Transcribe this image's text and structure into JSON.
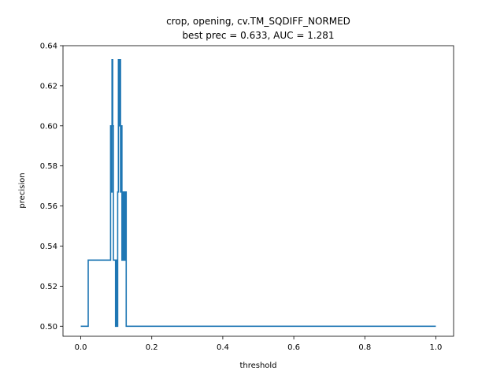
{
  "chart_data": {
    "type": "line",
    "title": "crop, opening, cv.TM_SQDIFF_NORMED",
    "subtitle": "best prec = 0.633, AUC = 1.281",
    "xlabel": "threshold",
    "ylabel": "precision",
    "xlim": [
      -0.05,
      1.05
    ],
    "ylim": [
      0.495,
      0.64
    ],
    "xticks": [
      0.0,
      0.2,
      0.4,
      0.6,
      0.8,
      1.0
    ],
    "xtick_labels": [
      "0.0",
      "0.2",
      "0.4",
      "0.6",
      "0.8",
      "1.0"
    ],
    "yticks": [
      0.5,
      0.52,
      0.54,
      0.56,
      0.58,
      0.6,
      0.62,
      0.64
    ],
    "ytick_labels": [
      "0.50",
      "0.52",
      "0.54",
      "0.56",
      "0.58",
      "0.60",
      "0.62",
      "0.64"
    ],
    "grid": false,
    "series": [
      {
        "color": "#1f77b4",
        "x": [
          0.0,
          0.021,
          0.021,
          0.084,
          0.084,
          0.086,
          0.086,
          0.088,
          0.088,
          0.09,
          0.09,
          0.092,
          0.092,
          0.098,
          0.098,
          0.1,
          0.1,
          0.102,
          0.102,
          0.104,
          0.104,
          0.106,
          0.106,
          0.108,
          0.108,
          0.11,
          0.11,
          0.112,
          0.112,
          0.114,
          0.114,
          0.116,
          0.116,
          0.118,
          0.118,
          0.12,
          0.12,
          0.122,
          0.122,
          0.124,
          0.124,
          0.126,
          0.126,
          0.128,
          0.128,
          1.0
        ],
        "y": [
          0.5,
          0.5,
          0.533,
          0.533,
          0.6,
          0.6,
          0.567,
          0.567,
          0.633,
          0.633,
          0.6,
          0.6,
          0.533,
          0.533,
          0.5,
          0.5,
          0.533,
          0.533,
          0.5,
          0.5,
          0.567,
          0.567,
          0.633,
          0.633,
          0.6,
          0.6,
          0.633,
          0.633,
          0.567,
          0.567,
          0.6,
          0.6,
          0.533,
          0.533,
          0.567,
          0.567,
          0.533,
          0.533,
          0.567,
          0.567,
          0.533,
          0.533,
          0.567,
          0.567,
          0.5,
          0.5
        ]
      }
    ]
  }
}
